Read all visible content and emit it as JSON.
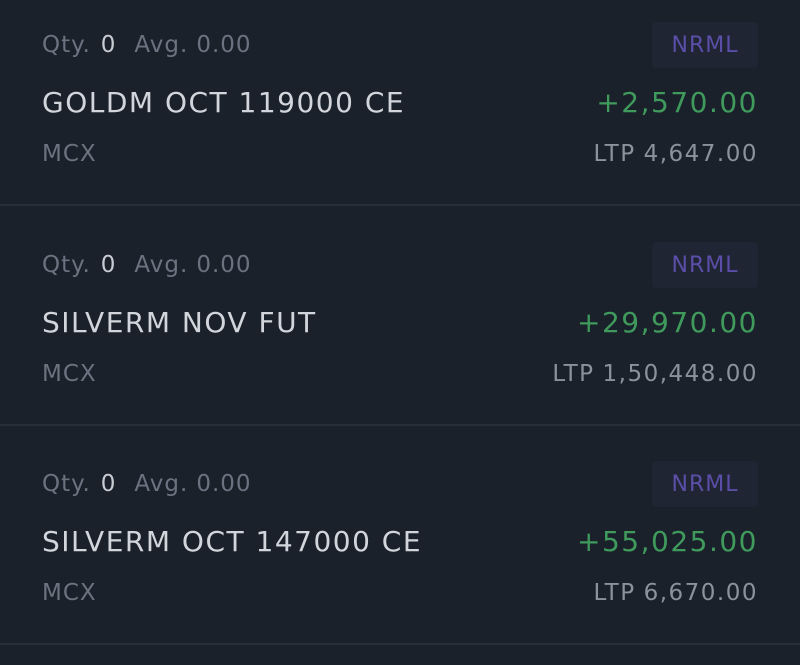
{
  "positions": [
    {
      "qty_label": "Qty.",
      "qty": "0",
      "avg_label": "Avg.",
      "avg": "0.00",
      "product": "NRML",
      "symbol": "GOLDM OCT 119000 CE",
      "pnl": "+2,570.00",
      "exchange": "MCX",
      "ltp_label": "LTP",
      "ltp": "4,647.00"
    },
    {
      "qty_label": "Qty.",
      "qty": "0",
      "avg_label": "Avg.",
      "avg": "0.00",
      "product": "NRML",
      "symbol": "SILVERM NOV FUT",
      "pnl": "+29,970.00",
      "exchange": "MCX",
      "ltp_label": "LTP",
      "ltp": "1,50,448.00"
    },
    {
      "qty_label": "Qty.",
      "qty": "0",
      "avg_label": "Avg.",
      "avg": "0.00",
      "product": "NRML",
      "symbol": "SILVERM OCT 147000 CE",
      "pnl": "+55,025.00",
      "exchange": "MCX",
      "ltp_label": "LTP",
      "ltp": "6,670.00"
    }
  ],
  "colors": {
    "background": "#1a212b",
    "profit": "#3f9a5c",
    "product_badge_text": "#5b4ea8",
    "primary_text": "#d2d6dc",
    "muted_text": "#6b7380"
  }
}
